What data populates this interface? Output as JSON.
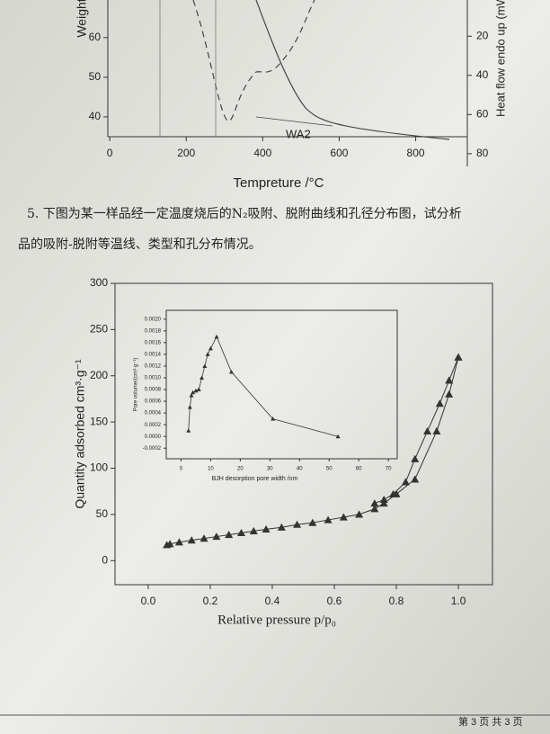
{
  "chart_data": [
    {
      "type": "line",
      "xlabel": "Tempreture /°C",
      "ylabel": "Weight",
      "y2label": "Heat flow endo up (mW)",
      "annotation": "WA2",
      "xlim": [
        -5,
        935
      ],
      "xticks": [
        0,
        200,
        400,
        600,
        800
      ],
      "ylim": [
        27.5,
        69.5
      ],
      "yticks": [
        40,
        50,
        60
      ],
      "y2lim": [
        1.5,
        86.5
      ],
      "y2ticks": [
        20,
        40,
        60,
        80
      ],
      "y2_inverted": true
    },
    {
      "type": "scatter",
      "xlabel": "Relative pressure p/p₀",
      "ylabel": "Quantity adsorbed cm³·g⁻¹",
      "xlim": [
        -0.107,
        1.11
      ],
      "xticks": [
        {
          "value": 0,
          "label": "0.0"
        },
        0.2,
        0.4,
        0.6,
        0.8,
        {
          "value": 1,
          "label": "1.0"
        }
      ],
      "ylim": [
        -26,
        300
      ],
      "yticks": [
        0,
        50,
        100,
        150,
        200,
        250,
        300
      ],
      "series": [
        {
          "color": "#333333",
          "x": [
            0.06,
            0.07,
            0.1,
            0.14,
            0.18,
            0.22,
            0.26,
            0.3,
            0.34,
            0.38,
            0.43,
            0.48,
            0.53,
            0.58,
            0.63,
            0.68,
            0.73,
            0.76,
            0.8,
            0.86,
            0.93,
            0.97,
            1.0
          ],
          "values": [
            17,
            18,
            20,
            22,
            24,
            26,
            28,
            30,
            32,
            34,
            36,
            39,
            41,
            44,
            47,
            50,
            56,
            62,
            72,
            88,
            140,
            180,
            220
          ]
        },
        {
          "color": "#333333",
          "x": [
            1.0,
            0.97,
            0.94,
            0.9,
            0.86,
            0.83,
            0.79,
            0.76,
            0.73
          ],
          "values": [
            220,
            195,
            170,
            140,
            110,
            85,
            72,
            66,
            62
          ]
        }
      ]
    },
    {
      "type": "scatter",
      "xlabel": "BJH desorption pore width /nm",
      "ylabel": "Pore volume/(cm³·g⁻¹)",
      "xlim": [
        -5,
        73
      ],
      "xticks": [
        0,
        10,
        20,
        30,
        40,
        50,
        60,
        70
      ],
      "ylim": [
        -0.00038,
        0.00215
      ],
      "yticks": [
        {
          "value": -0.0002,
          "label": "-0.0002"
        },
        {
          "value": 0,
          "label": "0.0000"
        },
        {
          "value": 0.0002,
          "label": "0.0002"
        },
        {
          "value": 0.0004,
          "label": "0.0004"
        },
        {
          "value": 0.0006,
          "label": "0.0006"
        },
        {
          "value": 0.0008,
          "label": "0.0008"
        },
        {
          "value": 0.001,
          "label": "0.0010"
        },
        {
          "value": 0.0012,
          "label": "0.0012"
        },
        {
          "value": 0.0014,
          "label": "0.0014"
        },
        {
          "value": 0.0016,
          "label": "0.0016"
        },
        {
          "value": 0.0018,
          "label": "0.0018"
        },
        {
          "value": 0.002,
          "label": "0.0020"
        }
      ],
      "series": [
        {
          "color": "#333333",
          "x": [
            2.5,
            3,
            3.5,
            4,
            5,
            6,
            7,
            8,
            9,
            10,
            12,
            17,
            31,
            53
          ],
          "values": [
            0.0001,
            0.0005,
            0.0007,
            0.00075,
            0.00078,
            0.0008,
            0.001,
            0.0012,
            0.0014,
            0.0015,
            0.0017,
            0.0011,
            0.0003,
            0
          ]
        }
      ]
    }
  ],
  "question": {
    "line1": "5. 下图为某一样品经一定温度烧后的N₂吸附、脱附曲线和孔径分布图，试分析",
    "line2": "品的吸附-脱附等温线、类型和孔分布情况。"
  },
  "footer": "第 3 页 共 3 页"
}
